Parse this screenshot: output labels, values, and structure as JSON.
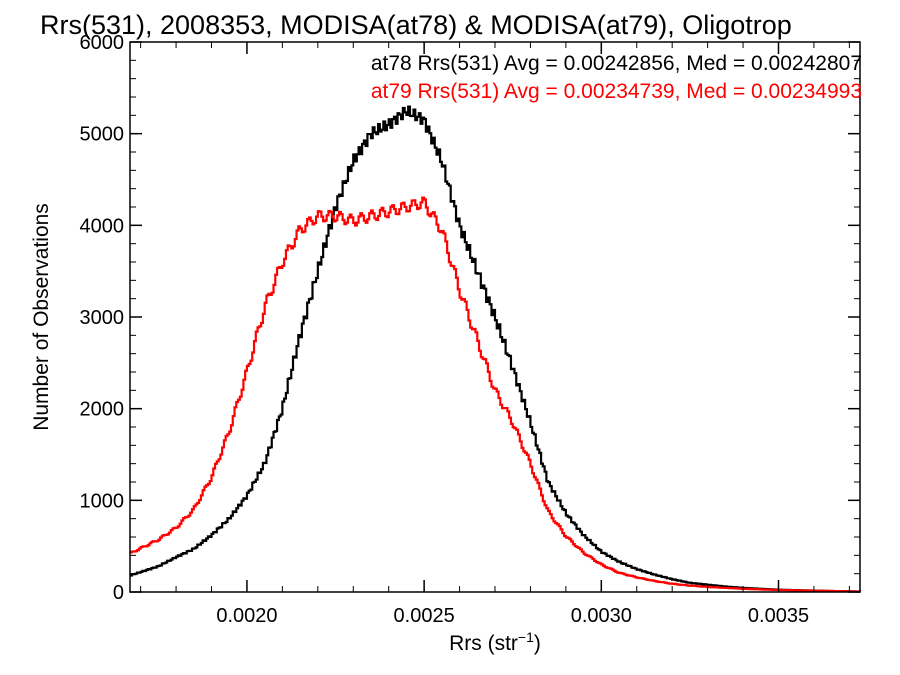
{
  "chart_data": {
    "type": "line",
    "title": "Rrs(531), 2008353, MODISA(at78) & MODISA(at79), Oligotrop",
    "xlabel_main": "Rrs (str",
    "xlabel_sup": "−1",
    "xlabel_end": ")",
    "ylabel": "Number of Observations",
    "xlim": [
      0.00167,
      0.00373
    ],
    "ylim": [
      0,
      6000
    ],
    "x_ticks": [
      {
        "value": 0.002,
        "label": "0.0020"
      },
      {
        "value": 0.0025,
        "label": "0.0025"
      },
      {
        "value": 0.003,
        "label": "0.0030"
      },
      {
        "value": 0.0035,
        "label": "0.0035"
      }
    ],
    "y_ticks": [
      {
        "value": 0,
        "label": "0"
      },
      {
        "value": 1000,
        "label": "1000"
      },
      {
        "value": 2000,
        "label": "2000"
      },
      {
        "value": 3000,
        "label": "3000"
      },
      {
        "value": 4000,
        "label": "4000"
      },
      {
        "value": 5000,
        "label": "5000"
      },
      {
        "value": 6000,
        "label": "6000"
      }
    ],
    "x_minor_step": 0.0001,
    "y_minor_step": 200,
    "legend_position": "top-right",
    "annotations": [
      {
        "text": "at78 Rrs(531) Avg = 0.00242856, Med = 0.00242807",
        "color": "#000000"
      },
      {
        "text": "at79 Rrs(531) Avg = 0.00234739, Med = 0.00234993",
        "color": "#ff0000"
      }
    ],
    "series": [
      {
        "color": "#000000",
        "x": [
          0.00167,
          0.00175,
          0.0018,
          0.00185,
          0.0019,
          0.00195,
          0.002,
          0.00205,
          0.0021,
          0.00215,
          0.0022,
          0.00225,
          0.0023,
          0.00235,
          0.0024,
          0.00245,
          0.0025,
          0.00255,
          0.0026,
          0.00265,
          0.0027,
          0.00275,
          0.0028,
          0.00285,
          0.0029,
          0.00295,
          0.003,
          0.00305,
          0.0031,
          0.00315,
          0.0032,
          0.00325,
          0.0033,
          0.00335,
          0.0034,
          0.00345,
          0.0035,
          0.0036,
          0.00373
        ],
        "y": [
          180,
          280,
          380,
          470,
          620,
          800,
          1050,
          1400,
          2000,
          2800,
          3500,
          4200,
          4700,
          5000,
          5100,
          5250,
          5150,
          4700,
          4000,
          3500,
          3000,
          2450,
          1850,
          1200,
          860,
          620,
          440,
          330,
          250,
          190,
          140,
          100,
          80,
          60,
          45,
          35,
          25,
          15,
          5
        ]
      },
      {
        "color": "#ff0000",
        "x": [
          0.00167,
          0.00175,
          0.0018,
          0.00185,
          0.0019,
          0.00195,
          0.002,
          0.00205,
          0.0021,
          0.00215,
          0.0022,
          0.00225,
          0.0023,
          0.00235,
          0.0024,
          0.00245,
          0.0025,
          0.00255,
          0.0026,
          0.00265,
          0.0027,
          0.00275,
          0.0028,
          0.00285,
          0.0029,
          0.00295,
          0.003,
          0.00305,
          0.0031,
          0.00315,
          0.0032,
          0.00325,
          0.0033,
          0.00335,
          0.0034,
          0.00345,
          0.0035,
          0.0036,
          0.00373
        ],
        "y": [
          420,
          570,
          700,
          900,
          1250,
          1750,
          2400,
          3100,
          3600,
          3950,
          4100,
          4100,
          4050,
          4100,
          4150,
          4200,
          4250,
          3950,
          3300,
          2750,
          2200,
          1850,
          1400,
          880,
          610,
          430,
          300,
          210,
          160,
          120,
          90,
          70,
          55,
          45,
          35,
          28,
          22,
          15,
          5
        ]
      }
    ]
  }
}
